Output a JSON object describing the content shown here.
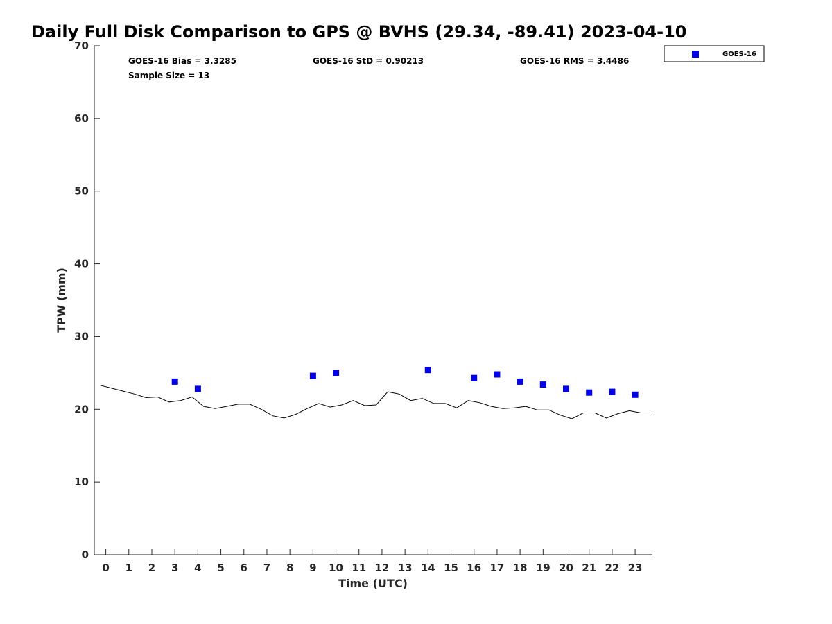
{
  "chart_data": {
    "type": "scatter",
    "title": "Daily Full Disk Comparison to GPS @ BVHS (29.34, -89.41) 2023-04-10",
    "xlabel": "Time (UTC)",
    "ylabel": "TPW (mm)",
    "xlim": [
      -0.5,
      23.75
    ],
    "ylim": [
      0,
      70
    ],
    "xticks": [
      "0",
      "1",
      "2",
      "3",
      "4",
      "5",
      "6",
      "7",
      "8",
      "9",
      "10",
      "11",
      "12",
      "13",
      "14",
      "15",
      "16",
      "17",
      "18",
      "19",
      "20",
      "21",
      "22",
      "23"
    ],
    "yticks": [
      "0",
      "10",
      "20",
      "30",
      "40",
      "50",
      "60",
      "70"
    ],
    "grid": false,
    "legend_position": "top-right (outside)",
    "stats": {
      "bias": "GOES-16 Bias = 3.3285",
      "std": "GOES-16 StD = 0.90213",
      "rms": "GOES-16 RMS = 3.4486",
      "sample": "Sample Size = 13"
    },
    "series": [
      {
        "name": "GOES-16",
        "style": "blue squares",
        "color": "#0000ee",
        "x": [
          3,
          4,
          9,
          10,
          14,
          16,
          17,
          18,
          19,
          20,
          21,
          22,
          23
        ],
        "y": [
          23.8,
          22.8,
          24.6,
          25.0,
          25.4,
          24.3,
          24.8,
          23.8,
          23.4,
          22.8,
          22.3,
          22.4,
          22.0
        ]
      },
      {
        "style": "black line (GPS)",
        "color": "#000000",
        "x": [
          -0.25,
          0.25,
          0.75,
          1.25,
          1.75,
          2.25,
          2.75,
          3.25,
          3.75,
          4.25,
          4.75,
          5.25,
          5.75,
          6.25,
          6.75,
          7.25,
          7.75,
          8.25,
          8.75,
          9.25,
          9.75,
          10.25,
          10.75,
          11.25,
          11.75,
          12.25,
          12.75,
          13.25,
          13.75,
          14.25,
          14.75,
          15.25,
          15.75,
          16.25,
          16.75,
          17.25,
          17.75,
          18.25,
          18.75,
          19.25,
          19.75,
          20.25,
          20.75,
          21.25,
          21.75,
          22.25,
          22.75,
          23.25,
          23.75
        ],
        "y": [
          23.3,
          22.9,
          22.5,
          22.1,
          21.6,
          21.7,
          21.0,
          21.2,
          21.7,
          20.4,
          20.1,
          20.4,
          20.7,
          20.7,
          20.0,
          19.1,
          18.8,
          19.3,
          20.1,
          20.8,
          20.3,
          20.6,
          21.2,
          20.5,
          20.6,
          22.4,
          22.1,
          21.2,
          21.5,
          20.8,
          20.8,
          20.2,
          21.2,
          20.9,
          20.4,
          20.1,
          20.2,
          20.4,
          19.9,
          19.9,
          19.2,
          18.7,
          19.5,
          19.5,
          18.8,
          19.4,
          19.8,
          19.5,
          19.5
        ]
      }
    ]
  }
}
